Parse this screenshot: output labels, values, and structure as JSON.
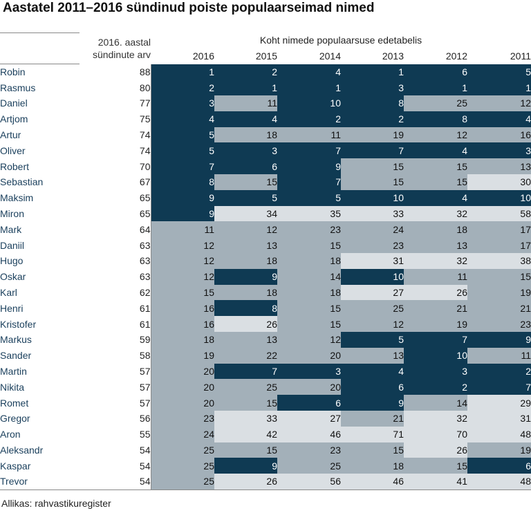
{
  "title": "Aastatel 2011–2016 sündinud poiste populaarseimad nimed",
  "source": "Allikas: rahvastikuregister",
  "colors": {
    "dark": "#0f3a53",
    "mid": "#a3b0b9",
    "light": "#dadfe3"
  },
  "chart_data": {
    "type": "table",
    "count_header": "2016. aastal sündinute arv",
    "rank_header": "Koht nimede populaarsuse edetabelis",
    "years": [
      "2016",
      "2015",
      "2014",
      "2013",
      "2012",
      "2011"
    ],
    "rows": [
      {
        "name": "Robin",
        "count": 88,
        "ranks": [
          1,
          2,
          4,
          1,
          6,
          5
        ]
      },
      {
        "name": "Rasmus",
        "count": 80,
        "ranks": [
          2,
          1,
          1,
          3,
          1,
          1
        ]
      },
      {
        "name": "Daniel",
        "count": 77,
        "ranks": [
          3,
          11,
          10,
          8,
          25,
          12
        ]
      },
      {
        "name": "Artjom",
        "count": 75,
        "ranks": [
          4,
          4,
          2,
          2,
          8,
          4
        ]
      },
      {
        "name": "Artur",
        "count": 74,
        "ranks": [
          5,
          18,
          11,
          19,
          12,
          16
        ]
      },
      {
        "name": "Oliver",
        "count": 74,
        "ranks": [
          5,
          3,
          7,
          7,
          4,
          3
        ]
      },
      {
        "name": "Robert",
        "count": 70,
        "ranks": [
          7,
          6,
          9,
          15,
          15,
          13
        ]
      },
      {
        "name": "Sebastian",
        "count": 67,
        "ranks": [
          8,
          15,
          7,
          15,
          15,
          30
        ]
      },
      {
        "name": "Maksim",
        "count": 65,
        "ranks": [
          9,
          5,
          5,
          10,
          4,
          10
        ]
      },
      {
        "name": "Miron",
        "count": 65,
        "ranks": [
          9,
          34,
          35,
          33,
          32,
          58
        ]
      },
      {
        "name": "Mark",
        "count": 64,
        "ranks": [
          11,
          12,
          23,
          24,
          18,
          17
        ]
      },
      {
        "name": "Daniil",
        "count": 63,
        "ranks": [
          12,
          13,
          15,
          23,
          13,
          17
        ]
      },
      {
        "name": "Hugo",
        "count": 63,
        "ranks": [
          12,
          18,
          18,
          31,
          32,
          38
        ]
      },
      {
        "name": "Oskar",
        "count": 63,
        "ranks": [
          12,
          9,
          14,
          10,
          11,
          15
        ]
      },
      {
        "name": "Karl",
        "count": 62,
        "ranks": [
          15,
          18,
          18,
          27,
          26,
          19
        ]
      },
      {
        "name": "Henri",
        "count": 61,
        "ranks": [
          16,
          8,
          15,
          25,
          21,
          21
        ]
      },
      {
        "name": "Kristofer",
        "count": 61,
        "ranks": [
          16,
          26,
          15,
          12,
          19,
          23
        ]
      },
      {
        "name": "Markus",
        "count": 59,
        "ranks": [
          18,
          13,
          12,
          5,
          7,
          9
        ]
      },
      {
        "name": "Sander",
        "count": 58,
        "ranks": [
          19,
          22,
          20,
          13,
          10,
          11
        ]
      },
      {
        "name": "Martin",
        "count": 57,
        "ranks": [
          20,
          7,
          3,
          4,
          3,
          2
        ]
      },
      {
        "name": "Nikita",
        "count": 57,
        "ranks": [
          20,
          25,
          20,
          6,
          2,
          7
        ]
      },
      {
        "name": "Romet",
        "count": 57,
        "ranks": [
          20,
          15,
          6,
          9,
          14,
          29
        ]
      },
      {
        "name": "Gregor",
        "count": 56,
        "ranks": [
          23,
          33,
          27,
          21,
          32,
          31
        ]
      },
      {
        "name": "Aron",
        "count": 55,
        "ranks": [
          24,
          42,
          46,
          71,
          70,
          48
        ]
      },
      {
        "name": "Aleksandr",
        "count": 54,
        "ranks": [
          25,
          15,
          23,
          15,
          26,
          19
        ]
      },
      {
        "name": "Kaspar",
        "count": 54,
        "ranks": [
          25,
          9,
          25,
          18,
          15,
          6
        ]
      },
      {
        "name": "Trevor",
        "count": 54,
        "ranks": [
          25,
          26,
          56,
          46,
          41,
          48
        ]
      }
    ],
    "color_rule": "rank 1–10: dark; 11–25: mid; 26+: light"
  }
}
